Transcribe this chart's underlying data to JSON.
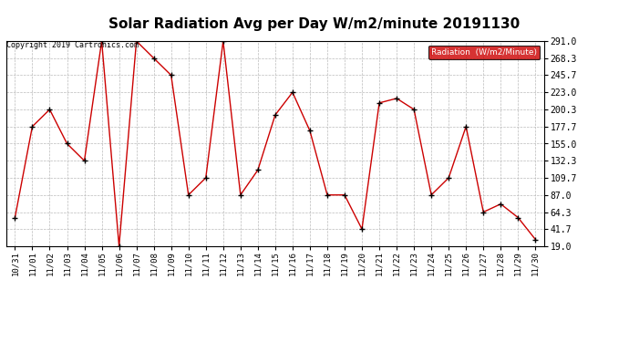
{
  "title": "Solar Radiation Avg per Day W/m2/minute 20191130",
  "copyright_text": "Copyright 2019 Cartronics.com",
  "legend_label": "Radiation  (W/m2/Minute)",
  "x_labels": [
    "10/31",
    "11/01",
    "11/02",
    "11/03",
    "11/04",
    "11/05",
    "11/06",
    "11/07",
    "11/08",
    "11/09",
    "11/10",
    "11/11",
    "11/12",
    "11/13",
    "11/14",
    "11/15",
    "11/16",
    "11/17",
    "11/18",
    "11/19",
    "11/20",
    "11/21",
    "11/22",
    "11/23",
    "11/24",
    "11/25",
    "11/26",
    "11/27",
    "11/28",
    "11/29",
    "11/30"
  ],
  "y_values": [
    57.0,
    177.7,
    200.3,
    155.0,
    132.3,
    291.0,
    19.0,
    291.0,
    268.3,
    245.7,
    87.0,
    109.7,
    291.0,
    87.0,
    120.0,
    193.0,
    223.0,
    172.0,
    87.0,
    87.0,
    41.7,
    209.0,
    215.0,
    200.3,
    87.0,
    109.7,
    177.7,
    64.3,
    75.0,
    57.0,
    28.0
  ],
  "y_ticks": [
    19.0,
    41.7,
    64.3,
    87.0,
    109.7,
    132.3,
    155.0,
    177.7,
    200.3,
    223.0,
    245.7,
    268.3,
    291.0
  ],
  "ylim": [
    19.0,
    291.0
  ],
  "line_color": "#cc0000",
  "marker_color": "#000000",
  "background_color": "#ffffff",
  "grid_color": "#bbbbbb",
  "title_fontsize": 11,
  "legend_bg_color": "#cc0000",
  "legend_text_color": "#ffffff",
  "figwidth": 6.9,
  "figheight": 3.75,
  "dpi": 100
}
